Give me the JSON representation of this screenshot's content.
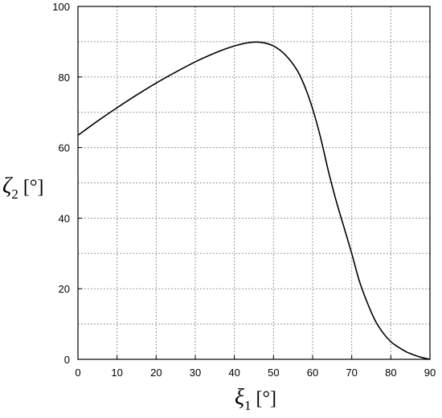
{
  "chart_data": {
    "type": "line",
    "title": "",
    "xlabel": {
      "symbol": "ξ",
      "subscript": "1",
      "unit": "[°]"
    },
    "ylabel": {
      "symbol": "ζ",
      "subscript": "2",
      "unit": "[°]"
    },
    "xlim": [
      0,
      90
    ],
    "ylim": [
      0,
      100
    ],
    "xticks": [
      0,
      10,
      20,
      30,
      40,
      50,
      60,
      70,
      80,
      90
    ],
    "yticks": [
      0,
      20,
      40,
      60,
      80,
      100
    ],
    "grid": true,
    "colors": {
      "line": "#000000",
      "grid": "#999999",
      "axis": "#000000"
    },
    "series": [
      {
        "x": [
          0,
          5,
          10,
          15,
          20,
          25,
          30,
          35,
          40,
          44,
          47,
          50,
          53,
          56,
          58,
          60,
          62,
          64,
          66,
          68,
          70,
          72,
          74,
          76,
          78,
          80,
          82,
          84,
          86,
          88,
          90
        ],
        "y": [
          63.5,
          67.5,
          71.3,
          74.9,
          78.3,
          81.4,
          84.3,
          86.8,
          88.8,
          89.8,
          89.8,
          88.8,
          86.3,
          82.0,
          77.3,
          71.0,
          63.0,
          53.5,
          45.0,
          37.5,
          30.0,
          22.0,
          16.0,
          11.0,
          7.5,
          5.0,
          3.4,
          2.1,
          1.2,
          0.5,
          0
        ]
      }
    ]
  }
}
